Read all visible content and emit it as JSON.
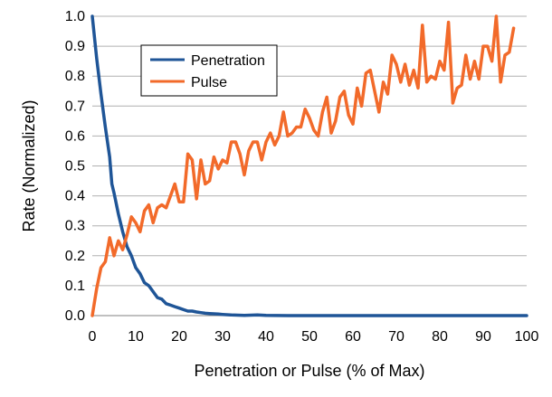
{
  "chart_data": {
    "type": "line",
    "title": "",
    "xlabel": "Penetration or Pulse (% of Max)",
    "ylabel": "Rate  (Normalized)",
    "xlim": [
      0,
      100
    ],
    "ylim": [
      0,
      1
    ],
    "x_ticks": [
      "0",
      "10",
      "20",
      "30",
      "40",
      "50",
      "60",
      "70",
      "80",
      "90",
      "100"
    ],
    "y_ticks": [
      "0.0",
      "0.1",
      "0.2",
      "0.3",
      "0.4",
      "0.5",
      "0.6",
      "0.7",
      "0.8",
      "0.9",
      "1.0"
    ],
    "grid": "horizontal",
    "legend_position": "top-left",
    "series": [
      {
        "name": "Penetration",
        "color": "#1f5597",
        "points": [
          [
            0,
            1.0
          ],
          [
            1,
            0.86
          ],
          [
            2,
            0.74
          ],
          [
            3,
            0.63
          ],
          [
            4,
            0.53
          ],
          [
            4.5,
            0.44
          ],
          [
            5,
            0.41
          ],
          [
            6,
            0.34
          ],
          [
            7,
            0.28
          ],
          [
            8,
            0.23
          ],
          [
            9,
            0.2
          ],
          [
            10,
            0.16
          ],
          [
            11,
            0.14
          ],
          [
            12,
            0.11
          ],
          [
            13,
            0.1
          ],
          [
            14,
            0.08
          ],
          [
            15,
            0.06
          ],
          [
            16,
            0.055
          ],
          [
            17,
            0.04
          ],
          [
            18,
            0.035
          ],
          [
            19,
            0.03
          ],
          [
            20,
            0.025
          ],
          [
            21,
            0.02
          ],
          [
            22,
            0.015
          ],
          [
            23,
            0.015
          ],
          [
            24,
            0.012
          ],
          [
            25,
            0.01
          ],
          [
            26,
            0.008
          ],
          [
            27,
            0.007
          ],
          [
            28,
            0.006
          ],
          [
            29,
            0.005
          ],
          [
            30,
            0.004
          ],
          [
            32,
            0.002
          ],
          [
            35,
            0.001
          ],
          [
            38,
            0.002
          ],
          [
            40,
            0.001
          ],
          [
            45,
            0.0
          ],
          [
            50,
            0.0
          ],
          [
            60,
            0.0
          ],
          [
            70,
            0.0
          ],
          [
            80,
            0.0
          ],
          [
            90,
            0.0
          ],
          [
            100,
            0.0
          ]
        ]
      },
      {
        "name": "Pulse",
        "color": "#f26a2a",
        "points": [
          [
            0,
            0.0
          ],
          [
            1,
            0.09
          ],
          [
            2,
            0.16
          ],
          [
            3,
            0.18
          ],
          [
            4,
            0.26
          ],
          [
            5,
            0.2
          ],
          [
            6,
            0.25
          ],
          [
            7,
            0.22
          ],
          [
            8,
            0.27
          ],
          [
            9,
            0.33
          ],
          [
            10,
            0.31
          ],
          [
            11,
            0.28
          ],
          [
            12,
            0.35
          ],
          [
            13,
            0.37
          ],
          [
            14,
            0.31
          ],
          [
            15,
            0.36
          ],
          [
            16,
            0.37
          ],
          [
            17,
            0.36
          ],
          [
            18,
            0.4
          ],
          [
            19,
            0.44
          ],
          [
            20,
            0.38
          ],
          [
            21,
            0.38
          ],
          [
            22,
            0.54
          ],
          [
            23,
            0.52
          ],
          [
            24,
            0.39
          ],
          [
            25,
            0.52
          ],
          [
            26,
            0.44
          ],
          [
            27,
            0.45
          ],
          [
            28,
            0.53
          ],
          [
            29,
            0.49
          ],
          [
            30,
            0.52
          ],
          [
            31,
            0.51
          ],
          [
            32,
            0.58
          ],
          [
            33,
            0.58
          ],
          [
            34,
            0.54
          ],
          [
            35,
            0.47
          ],
          [
            36,
            0.55
          ],
          [
            37,
            0.58
          ],
          [
            38,
            0.58
          ],
          [
            39,
            0.52
          ],
          [
            40,
            0.58
          ],
          [
            41,
            0.61
          ],
          [
            42,
            0.57
          ],
          [
            43,
            0.6
          ],
          [
            44,
            0.68
          ],
          [
            45,
            0.6
          ],
          [
            46,
            0.61
          ],
          [
            47,
            0.63
          ],
          [
            48,
            0.63
          ],
          [
            49,
            0.69
          ],
          [
            50,
            0.66
          ],
          [
            51,
            0.62
          ],
          [
            52,
            0.6
          ],
          [
            53,
            0.68
          ],
          [
            54,
            0.73
          ],
          [
            55,
            0.61
          ],
          [
            56,
            0.65
          ],
          [
            57,
            0.73
          ],
          [
            58,
            0.75
          ],
          [
            59,
            0.67
          ],
          [
            60,
            0.64
          ],
          [
            61,
            0.76
          ],
          [
            62,
            0.7
          ],
          [
            63,
            0.81
          ],
          [
            64,
            0.82
          ],
          [
            65,
            0.75
          ],
          [
            66,
            0.68
          ],
          [
            67,
            0.78
          ],
          [
            68,
            0.74
          ],
          [
            69,
            0.87
          ],
          [
            70,
            0.84
          ],
          [
            71,
            0.78
          ],
          [
            72,
            0.84
          ],
          [
            73,
            0.77
          ],
          [
            74,
            0.82
          ],
          [
            75,
            0.76
          ],
          [
            76,
            0.97
          ],
          [
            77,
            0.78
          ],
          [
            78,
            0.8
          ],
          [
            79,
            0.79
          ],
          [
            80,
            0.85
          ],
          [
            81,
            0.82
          ],
          [
            82,
            0.98
          ],
          [
            83,
            0.71
          ],
          [
            84,
            0.76
          ],
          [
            85,
            0.77
          ],
          [
            86,
            0.87
          ],
          [
            87,
            0.79
          ],
          [
            88,
            0.85
          ],
          [
            89,
            0.79
          ],
          [
            90,
            0.9
          ],
          [
            91,
            0.9
          ],
          [
            92,
            0.85
          ],
          [
            93,
            1.0
          ],
          [
            94,
            0.78
          ],
          [
            95,
            0.87
          ],
          [
            96,
            0.88
          ],
          [
            97,
            0.96
          ]
        ]
      }
    ]
  }
}
